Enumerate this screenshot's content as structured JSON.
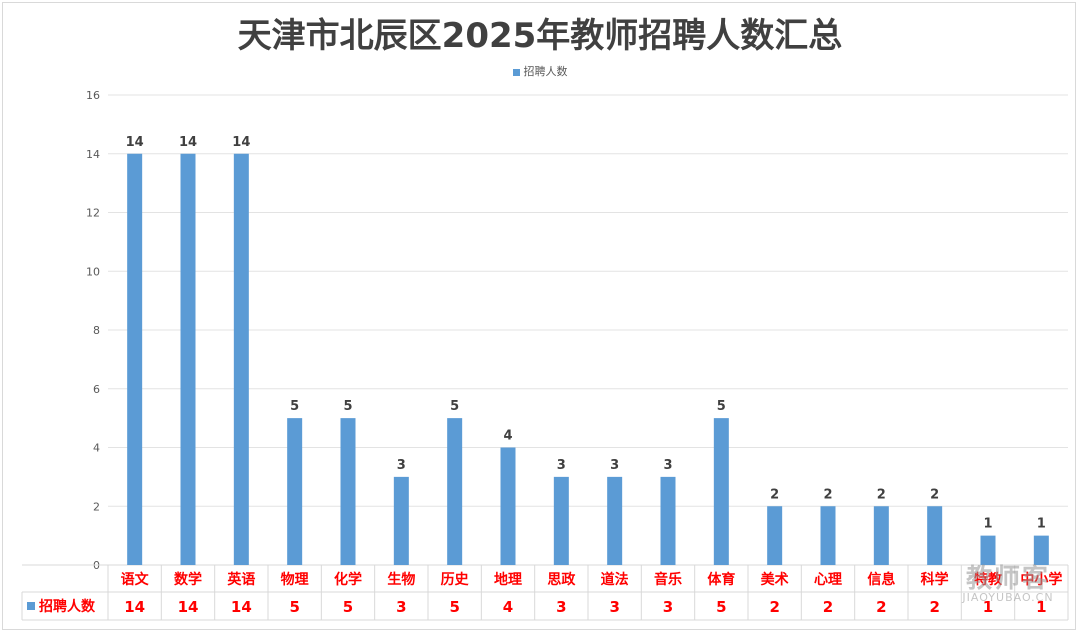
{
  "chart_data": {
    "type": "bar",
    "title": "天津市北辰区2025年教师招聘人数汇总",
    "categories": [
      "语文",
      "数学",
      "英语",
      "物理",
      "化学",
      "生物",
      "历史",
      "地理",
      "思政",
      "道法",
      "音乐",
      "体育",
      "美术",
      "心理",
      "信息",
      "科学",
      "特教",
      "中小学"
    ],
    "series": [
      {
        "name": "招聘人数",
        "values": [
          14,
          14,
          14,
          5,
          5,
          3,
          5,
          4,
          3,
          3,
          3,
          5,
          2,
          2,
          2,
          2,
          1,
          1
        ]
      }
    ],
    "ylim": [
      0,
      16
    ],
    "yticks": [
      0,
      2,
      4,
      6,
      8,
      10,
      12,
      14,
      16
    ],
    "grid": true,
    "legend_position": "top",
    "data_table": true,
    "colors": {
      "bar": "#5b9bd5",
      "category_text": "#ff0000",
      "table_value_text": "#ff0000"
    }
  },
  "watermark": {
    "main": "教师客",
    "sub": "JIAOYUBAO.CN"
  }
}
